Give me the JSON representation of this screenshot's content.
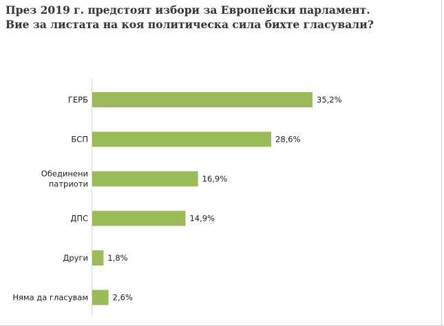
{
  "chart_data": {
    "type": "bar",
    "orientation": "horizontal",
    "title": [
      "През 2019 г. предстоят избори за Европейски парламент.",
      "Вие за листата на коя политическа сила бихте гласували?"
    ],
    "categories": [
      [
        "ГЕРБ"
      ],
      [
        "БСП"
      ],
      [
        "Обединени",
        "патриоти"
      ],
      [
        "ДПС"
      ],
      [
        "Други"
      ],
      [
        "Няма да гласувам"
      ]
    ],
    "values": [
      35.2,
      28.6,
      16.9,
      14.9,
      1.8,
      2.6
    ],
    "value_labels": [
      "35,2%",
      "28,6%",
      "16,9%",
      "14,9%",
      "1,8%",
      "2,6%"
    ],
    "bar_color": "#9bbb59",
    "xlim": [
      0,
      35.2
    ],
    "grid": false,
    "legend": "none"
  }
}
